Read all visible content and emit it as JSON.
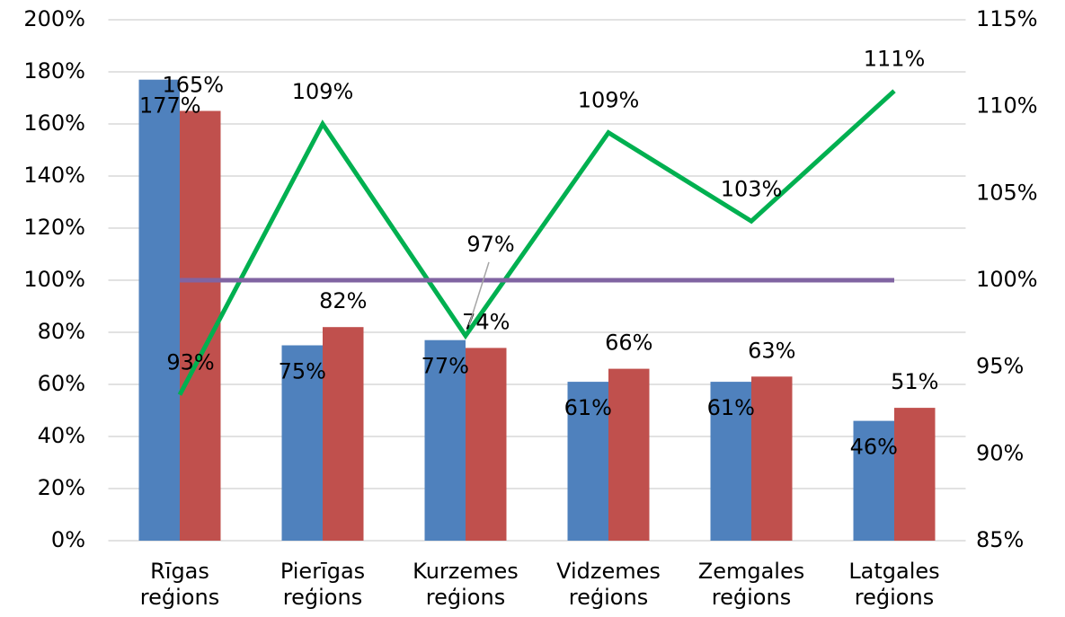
{
  "chart_data": {
    "type": "bar",
    "categories": [
      "Rīgas reģions",
      "Pierīgas reģions",
      "Kurzemes reģions",
      "Vidzemes reģions",
      "Zemgales reģions",
      "Latgales reģions"
    ],
    "series": [
      {
        "type": "bar",
        "color": "#4f81bd",
        "values": [
          177,
          75,
          77,
          61,
          61,
          46
        ],
        "value_labels": [
          "177%",
          "75%",
          "77%",
          "61%",
          "61%",
          "46%"
        ]
      },
      {
        "type": "bar",
        "color": "#c0504d",
        "values": [
          165,
          82,
          74,
          66,
          63,
          51
        ],
        "value_labels": [
          "165%",
          "82%",
          "74%",
          "66%",
          "63%",
          "51%"
        ]
      },
      {
        "type": "line",
        "axis": "y2",
        "color": "#00b050",
        "values": [
          93.4,
          109,
          96.8,
          108.5,
          103.4,
          110.9
        ],
        "value_labels": [
          "93%",
          "109%",
          "97%",
          "109%",
          "103%",
          "111%"
        ]
      },
      {
        "type": "line",
        "color": "#8064a2",
        "values": [
          100,
          100,
          100,
          100,
          100,
          100
        ]
      }
    ],
    "ylim": [
      0,
      200
    ],
    "yticks": [
      {
        "value": 0,
        "label": "0%"
      },
      {
        "value": 20,
        "label": "20%"
      },
      {
        "value": 40,
        "label": "40%"
      },
      {
        "value": 60,
        "label": "60%"
      },
      {
        "value": 80,
        "label": "80%"
      },
      {
        "value": 100,
        "label": "100%"
      },
      {
        "value": 120,
        "label": "120%"
      },
      {
        "value": 140,
        "label": "140%"
      },
      {
        "value": 160,
        "label": "160%"
      },
      {
        "value": 180,
        "label": "180%"
      },
      {
        "value": 200,
        "label": "200%"
      }
    ],
    "y2lim": [
      85,
      115
    ],
    "y2ticks": [
      {
        "value": 85,
        "label": "85%"
      },
      {
        "value": 90,
        "label": "90%"
      },
      {
        "value": 95,
        "label": "95%"
      },
      {
        "value": 100,
        "label": "100%"
      },
      {
        "value": 105,
        "label": "105%"
      },
      {
        "value": 110,
        "label": "110%"
      },
      {
        "value": 115,
        "label": "115%"
      }
    ],
    "grid": true
  }
}
